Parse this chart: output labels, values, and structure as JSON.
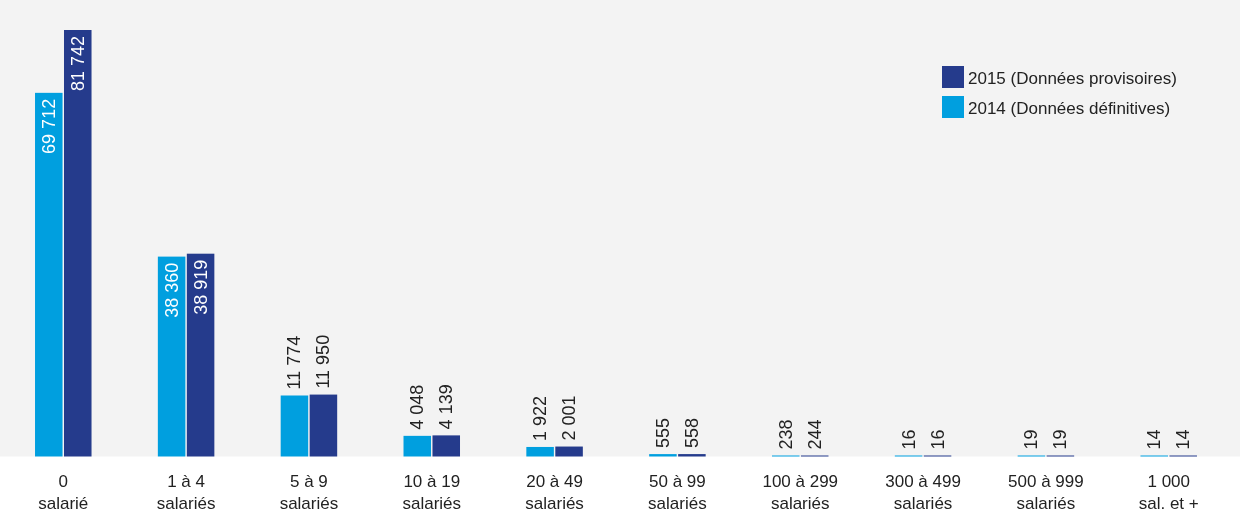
{
  "chart_data": {
    "type": "bar",
    "categories": [
      "0\nsalarié",
      "1 à 4\nsalariés",
      "5 à 9\nsalariés",
      "10 à 19\nsalariés",
      "20 à 49\nsalariés",
      "50 à 99\nsalariés",
      "100 à 299\nsalariés",
      "300 à 499\nsalariés",
      "500 à 999\nsalariés",
      "1 000\nsal. et +"
    ],
    "series": [
      {
        "name": "2014 (Données définitives)",
        "color": "#009fdf",
        "values": [
          69712,
          38360,
          11774,
          4048,
          1922,
          555,
          238,
          16,
          19,
          14
        ],
        "value_labels": [
          "69 712",
          "38 360",
          "11 774",
          "4 048",
          "1 922",
          "555",
          "238",
          "16",
          "19",
          "14"
        ]
      },
      {
        "name": "2015 (Données provisoires)",
        "color": "#253b8c",
        "values": [
          81742,
          38919,
          11950,
          4139,
          2001,
          558,
          244,
          16,
          19,
          14
        ],
        "value_labels": [
          "81 742",
          "38 919",
          "11 950",
          "4 139",
          "2 001",
          "558",
          "244",
          "16",
          "19",
          "14"
        ]
      }
    ],
    "relative": false,
    "legend": "top right"
  }
}
